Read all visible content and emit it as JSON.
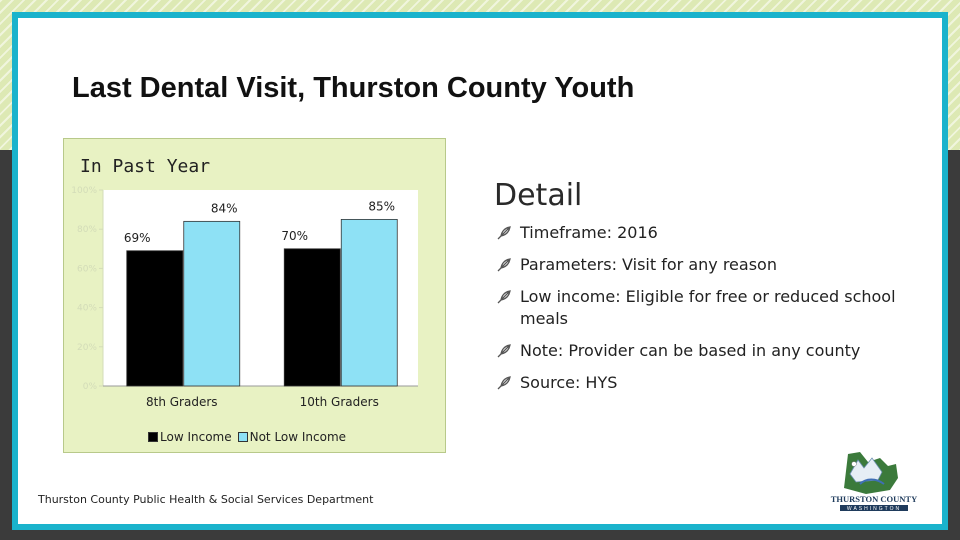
{
  "slide": {
    "title": "Last Dental Visit, Thurston County Youth",
    "footer": "Thurston County Public Health & Social Services Department"
  },
  "chart_panel": {
    "title": "In Past Year"
  },
  "chart_data": {
    "type": "bar",
    "title": "In Past Year",
    "categories": [
      "8th Graders",
      "10th Graders"
    ],
    "series": [
      {
        "name": "Low Income",
        "values": [
          69,
          70
        ],
        "labels": [
          "69%",
          "70%"
        ],
        "color": "#000000"
      },
      {
        "name": "Not Low Income",
        "values": [
          84,
          85
        ],
        "labels": [
          "84%",
          "85%"
        ],
        "color": "#8ee1f5"
      }
    ],
    "ylim": [
      0,
      100
    ],
    "yticks": [
      0,
      20,
      40,
      60,
      80,
      100
    ],
    "ytick_labels": [
      "0%",
      "20%",
      "40%",
      "60%",
      "80%",
      "100%"
    ],
    "legend": "bottom",
    "grid": false
  },
  "detail": {
    "title": "Detail",
    "bullets": [
      "Timeframe: 2016",
      "Parameters: Visit for any reason",
      "Low income: Eligible for free or reduced school meals",
      "Note: Provider can be based in any county",
      "Source: HYS"
    ],
    "bullet_icon": "feather-bullet-icon"
  },
  "logo": {
    "text": "THURSTON COUNTY",
    "subtext": "WASHINGTON",
    "icon": "mountain-county-logo"
  },
  "colors": {
    "frame": "#1ab3cc",
    "panel": "#e8f2c3",
    "low_income": "#000000",
    "not_low_income": "#8ee1f5"
  }
}
